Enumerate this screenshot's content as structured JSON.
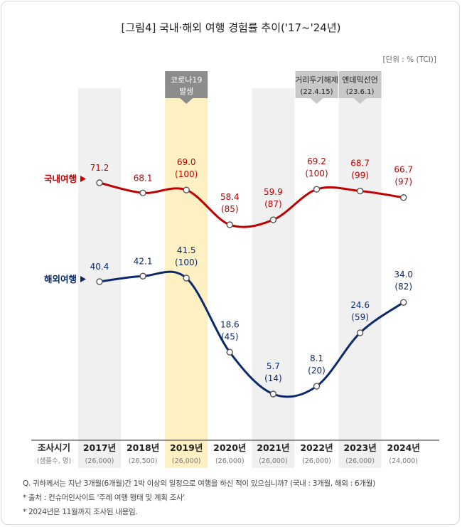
{
  "title": "[그림4] 국내·해외 여행 경험률 추이('17~'24년)",
  "unit": "[단위 : % (TCI)]",
  "colors": {
    "domestic": "#c00000",
    "overseas": "#0b2a6b",
    "column": "#f0f0f0",
    "highlight": "#fdf1c4",
    "banner_dark": "#8c8c8c",
    "banner_light": "#c8c8c8"
  },
  "events": [
    {
      "label": "코로나19",
      "sub": "발생",
      "column": 2,
      "style": "dark"
    },
    {
      "label": "거리두기해제",
      "sub": "(22.4.15)",
      "column": 5,
      "style": "light"
    },
    {
      "label": "엔데믹선언",
      "sub": "(23.6.1)",
      "column": 6,
      "style": "light"
    }
  ],
  "table": {
    "header": "조사시기",
    "header_sub": "(샘플수, 명)",
    "samples": [
      "(26,000)",
      "(26,500)",
      "(26,000)",
      "(26,000)",
      "(26,000)",
      "(26,000)",
      "(26,000)",
      "(24,000)"
    ]
  },
  "chart_data": {
    "type": "line",
    "title": "[그림4] 국내·해외 여행 경험률 추이('17~'24년)",
    "categories": [
      "2017년",
      "2018년",
      "2019년",
      "2020년",
      "2021년",
      "2022년",
      "2023년",
      "2024년"
    ],
    "series": [
      {
        "name": "국내여행",
        "values": [
          71.2,
          68.1,
          69.0,
          58.4,
          59.9,
          69.2,
          68.7,
          66.7
        ],
        "labels": [
          "71.2",
          "68.1",
          "69.0",
          "58.4",
          "59.9",
          "69.2",
          "68.7",
          "66.7"
        ],
        "tci": [
          "",
          "",
          "(100)",
          "(85)",
          "(87)",
          "(100)",
          "(99)",
          "(97)"
        ]
      },
      {
        "name": "해외여행",
        "values": [
          40.4,
          42.1,
          41.5,
          18.6,
          5.7,
          8.1,
          24.6,
          34.0
        ],
        "labels": [
          "40.4",
          "42.1",
          "41.5",
          "18.6",
          "5.7",
          "8.1",
          "24.6",
          "34.0"
        ],
        "tci": [
          "",
          "",
          "(100)",
          "(45)",
          "(14)",
          "(20)",
          "(59)",
          "(82)"
        ]
      }
    ],
    "highlight_category": "2019년",
    "legend": "left"
  },
  "notes": [
    "Q. 귀하께서는 지난 3개월(6개월)간 1박 이상의 일정으로 여행을 하신 적이 있으십니까? (국내 : 3개월, 해외 : 6개월)",
    "* 출처 : 컨슈머인사이트 '주례 여행 행태 및 계획 조사'",
    "* 2024년은 11월까지 조사된 내용임."
  ]
}
